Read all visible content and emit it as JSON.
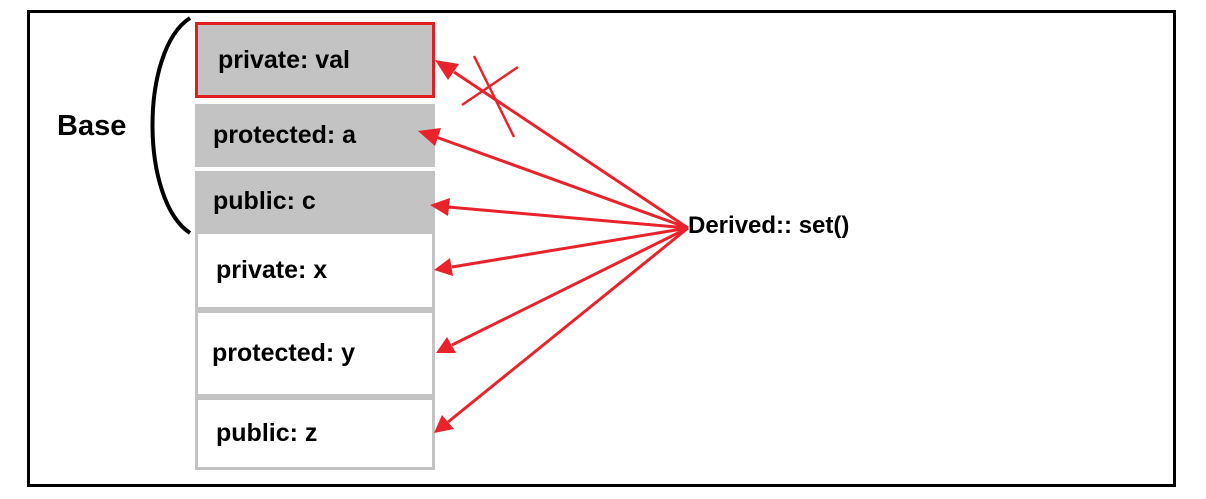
{
  "diagram": {
    "base_label": "Base",
    "function_label": "Derived:: set()",
    "members": [
      {
        "label": "private:  val",
        "region": "base",
        "accessible": false
      },
      {
        "label": "protected:  a",
        "region": "base",
        "accessible": true
      },
      {
        "label": "public:  c",
        "region": "base",
        "accessible": true
      },
      {
        "label": "private:  x",
        "region": "derived",
        "accessible": true
      },
      {
        "label": "protected:  y",
        "region": "derived",
        "accessible": true
      },
      {
        "label": "public:  z",
        "region": "derived",
        "accessible": true
      }
    ],
    "colors": {
      "arrow": "#e8232b",
      "base_fill": "#c3c3c3",
      "derived_border": "#c3c3c3",
      "highlight_border": "#e02020"
    }
  }
}
